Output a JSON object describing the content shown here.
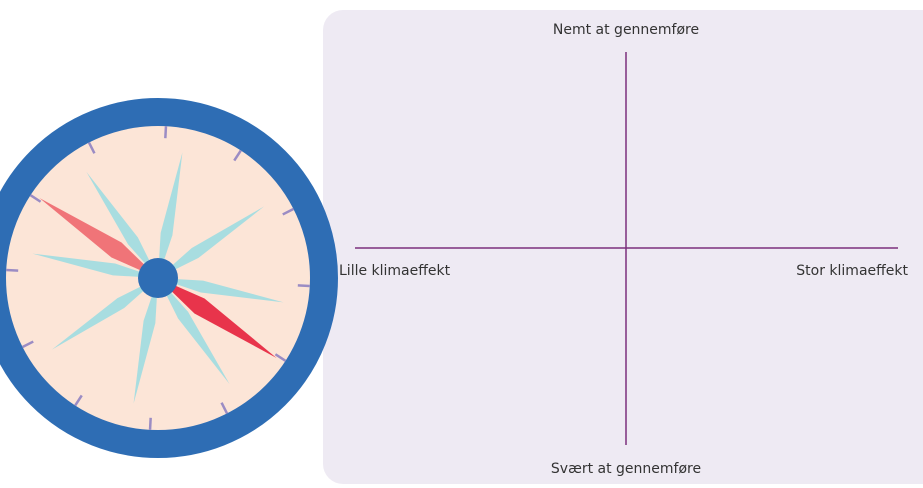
{
  "matrix": {
    "top_label": "Nemt at gennemføre",
    "bottom_label": "Svært at gennemføre",
    "left_label": "Lille klimaeffekt",
    "right_label": "Stor klimaeffekt"
  }
}
